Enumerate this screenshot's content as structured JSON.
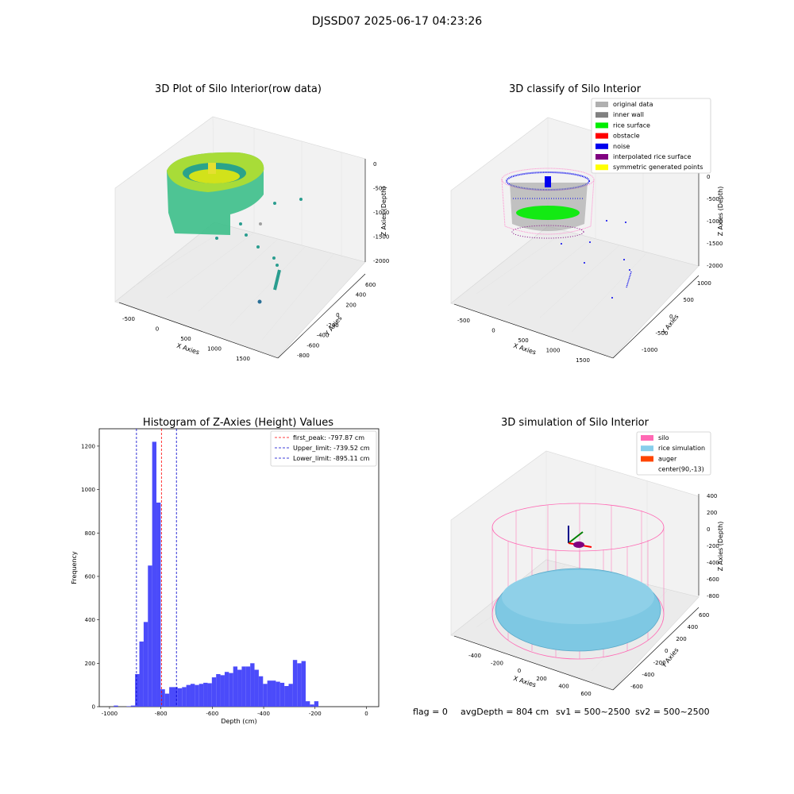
{
  "figure": {
    "suptitle": "DJSSD07 2025-06-17 04:23:26",
    "footer": {
      "flag": "flag = 0",
      "avg_depth": "avgDepth = 804 cm",
      "sv1": "sv1 = 500~2500",
      "sv2": "sv2 = 500~2500"
    }
  },
  "plot1": {
    "title": "3D Plot of Silo Interior(row data)",
    "xlabel": "X Axies",
    "ylabel": "Y Axies",
    "zlabel": "Z Axies (Depth)",
    "x_ticks": [
      "-500",
      "0",
      "500",
      "1000",
      "1500"
    ],
    "y_ticks": [
      "600",
      "400",
      "200",
      "0",
      "-200",
      "-400",
      "-600",
      "-800"
    ],
    "z_ticks": [
      "0",
      "-500",
      "-1000",
      "-1500",
      "-2000"
    ]
  },
  "plot2": {
    "title": "3D classify of Silo Interior",
    "xlabel": "X Axies",
    "ylabel": "Y Axies",
    "zlabel": "Z Axies (Depth)",
    "x_ticks": [
      "-500",
      "0",
      "500",
      "1000",
      "1500"
    ],
    "y_ticks": [
      "1000",
      "500",
      "0",
      "-500",
      "-1000"
    ],
    "z_ticks": [
      "0",
      "-500",
      "-1000",
      "-1500",
      "-2000"
    ],
    "legend": [
      {
        "label": "original data",
        "color": "#b0b0b0"
      },
      {
        "label": "inner wall",
        "color": "#808080"
      },
      {
        "label": "rice surface",
        "color": "#00ee00"
      },
      {
        "label": "obstacle",
        "color": "#ff0000"
      },
      {
        "label": "noise",
        "color": "#0000ee"
      },
      {
        "label": "interpolated rice surface",
        "color": "#800080"
      },
      {
        "label": "symmetric generated points",
        "color": "#ffff00"
      }
    ]
  },
  "plot4": {
    "title": "3D simulation of Silo Interior",
    "xlabel": "X Axies",
    "ylabel": "Y Axies",
    "zlabel": "Z Axies (Depth)",
    "x_ticks": [
      "-400",
      "-200",
      "0",
      "200",
      "400",
      "600"
    ],
    "y_ticks": [
      "600",
      "400",
      "200",
      "0",
      "-200",
      "-400",
      "-600"
    ],
    "z_ticks": [
      "400",
      "200",
      "0",
      "-200",
      "-400",
      "-600",
      "-800"
    ],
    "legend": [
      {
        "label": "silo",
        "color": "#ff69b4"
      },
      {
        "label": "rice simulation",
        "color": "#87ceeb"
      },
      {
        "label": "auger",
        "color": "#ff4500"
      },
      {
        "label": "center(90,-13)",
        "color": ""
      }
    ]
  },
  "chart_data": {
    "type": "bar",
    "title": "Histogram of Z-Axies (Height) Values",
    "xlabel": "Depth (cm)",
    "ylabel": "Frequency",
    "xlim": [
      -1000,
      0
    ],
    "ylim": [
      0,
      1280
    ],
    "x_ticks": [
      -1000,
      -800,
      -600,
      -400,
      -200,
      0
    ],
    "y_ticks": [
      0,
      200,
      400,
      600,
      800,
      1000,
      1200
    ],
    "bin_start": -1000,
    "bin_width": 16.6,
    "values": [
      0,
      5,
      0,
      0,
      2,
      5,
      150,
      300,
      390,
      650,
      1220,
      940,
      80,
      60,
      90,
      90,
      85,
      90,
      100,
      105,
      100,
      105,
      110,
      108,
      135,
      150,
      145,
      160,
      155,
      185,
      170,
      185,
      185,
      200,
      170,
      140,
      105,
      120,
      120,
      115,
      110,
      95,
      105,
      215,
      200,
      210,
      25,
      10,
      25
    ],
    "vlines": [
      {
        "label": "first_peak: -797.87 cm",
        "x": -797.87,
        "color": "#ff0000"
      },
      {
        "label": "Upper_limit: -739.52 cm",
        "x": -739.52,
        "color": "#0000cc"
      },
      {
        "label": "Lower_limit: -895.11 cm",
        "x": -895.11,
        "color": "#0000cc"
      }
    ],
    "bar_color": "#4b4bfa"
  }
}
